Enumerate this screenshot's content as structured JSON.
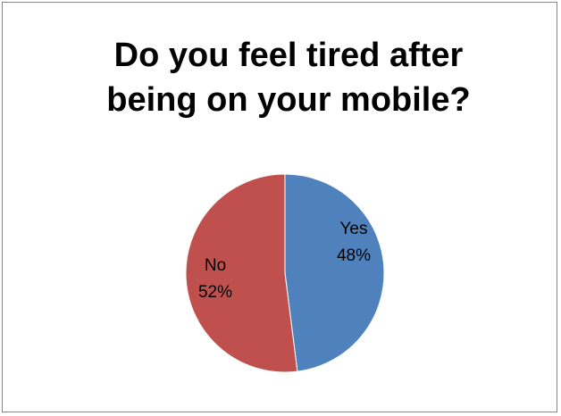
{
  "chart_data": {
    "type": "pie",
    "title": "Do you feel tired after\nbeing on your mobile?",
    "categories": [
      "Yes",
      "No"
    ],
    "values": [
      48,
      52
    ],
    "data_labels": [
      {
        "category": "Yes",
        "percent": "48%"
      },
      {
        "category": "No",
        "percent": "52%"
      }
    ],
    "colors": [
      "#4f81bd",
      "#c0504d"
    ],
    "legend": "none"
  }
}
